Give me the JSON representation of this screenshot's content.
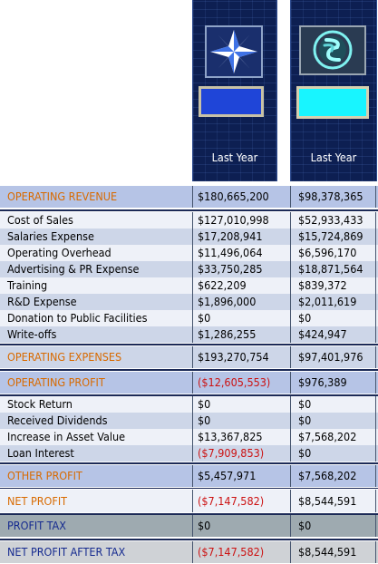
{
  "columns": [
    {
      "header": "Last Year",
      "logo": "white-blue-diamond-icon",
      "color": "#1f45d8"
    },
    {
      "header": "Last Year",
      "logo": "teal-globe-sphere-icon",
      "color": "#18f5ff"
    }
  ],
  "sections": {
    "operating_revenue": {
      "label": "OPERATING REVENUE",
      "v1": "$180,665,200",
      "v2": "$98,378,365"
    },
    "expenses": [
      {
        "label": "Cost of Sales",
        "v1": "$127,010,998",
        "v2": "$52,933,433"
      },
      {
        "label": "Salaries Expense",
        "v1": "$17,208,941",
        "v2": "$15,724,869"
      },
      {
        "label": "Operating Overhead",
        "v1": "$11,496,064",
        "v2": "$6,596,170"
      },
      {
        "label": "Advertising & PR Expense",
        "v1": "$33,750,285",
        "v2": "$18,871,564"
      },
      {
        "label": "Training",
        "v1": "$622,209",
        "v2": "$839,372"
      },
      {
        "label": "R&D Expense",
        "v1": "$1,896,000",
        "v2": "$2,011,619"
      },
      {
        "label": "Donation to Public Facilities",
        "v1": "$0",
        "v2": "$0"
      },
      {
        "label": "Write-offs",
        "v1": "$1,286,255",
        "v2": "$424,947"
      }
    ],
    "operating_expenses": {
      "label": "OPERATING EXPENSES",
      "v1": "$193,270,754",
      "v2": "$97,401,976"
    },
    "operating_profit": {
      "label": "OPERATING PROFIT",
      "v1": "($12,605,553)",
      "v2": "$976,389"
    },
    "other": [
      {
        "label": "Stock Return",
        "v1": "$0",
        "v2": "$0"
      },
      {
        "label": "Received Dividends",
        "v1": "$0",
        "v2": "$0"
      },
      {
        "label": "Increase in Asset Value",
        "v1": "$13,367,825",
        "v2": "$7,568,202"
      },
      {
        "label": "Loan Interest",
        "v1": "($7,909,853)",
        "v2": "$0"
      }
    ],
    "other_profit": {
      "label": "OTHER PROFIT",
      "v1": "$5,457,971",
      "v2": "$7,568,202"
    },
    "net_profit": {
      "label": "NET PROFIT",
      "v1": "($7,147,582)",
      "v2": "$8,544,591"
    },
    "profit_tax": {
      "label": "PROFIT TAX",
      "v1": "$0",
      "v2": "$0"
    },
    "net_profit_after_tax": {
      "label": "NET PROFIT AFTER TAX",
      "v1": "($7,147,582)",
      "v2": "$8,544,591"
    }
  },
  "colors": {
    "row_light": "#eef1f8",
    "row_medium": "#cdd6e8",
    "band_blue": "#b6c4e6",
    "band_gray": "#9eaab0",
    "band_light_gray": "#cfd2d6",
    "label_orange": "#d86a00",
    "label_navy": "#152a8f",
    "negative": "#cc1111"
  }
}
